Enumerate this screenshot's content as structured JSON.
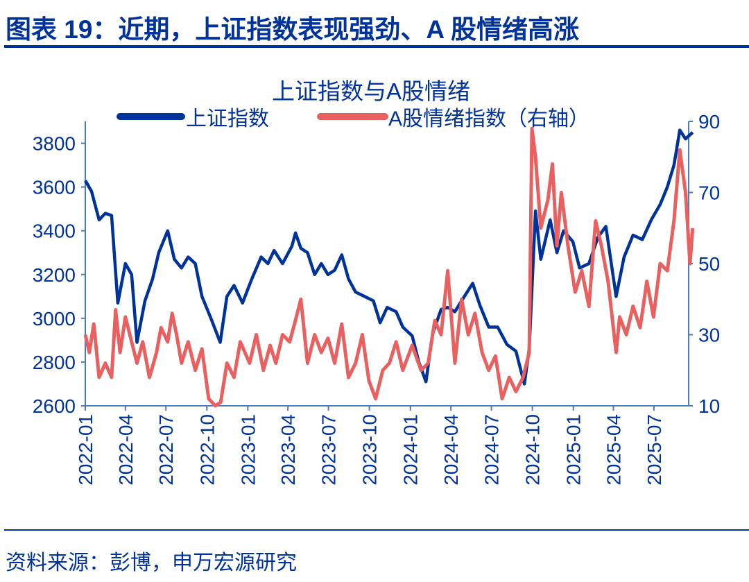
{
  "figure_title": "图表 19：近期，上证指数表现强劲、A 股情绪高涨",
  "source": "资料来源：彭博，申万宏源研究",
  "colors": {
    "primary": "#003399",
    "sentiment": "#e8605f",
    "axis": "#4a7ebb"
  },
  "chart_data": {
    "type": "line",
    "title": "上证指数与A股情绪",
    "legend_position": "top",
    "grid": false,
    "x_ticks": [
      "2022-01",
      "2022-04",
      "2022-07",
      "2022-10",
      "2023-01",
      "2023-04",
      "2023-07",
      "2023-10",
      "2024-01",
      "2024-04",
      "2024-07",
      "2024-10",
      "2025-01",
      "2025-04",
      "2025-07"
    ],
    "xlim": [
      "2022-01-01",
      "2025-09-26"
    ],
    "left_axis": {
      "ylim": [
        2600,
        3900
      ],
      "ticks": [
        "2600",
        "2800",
        "3000",
        "3200",
        "3400",
        "3600",
        "3800"
      ]
    },
    "right_axis": {
      "ylim": [
        10,
        90
      ],
      "ticks": [
        "10",
        "30",
        "50",
        "70",
        "90"
      ]
    },
    "series": [
      {
        "name": "上证指数",
        "axis": "left",
        "color": "#003399",
        "points": [
          [
            "2022-01-01",
            3630
          ],
          [
            "2022-01-15",
            3580
          ],
          [
            "2022-02-01",
            3450
          ],
          [
            "2022-02-15",
            3480
          ],
          [
            "2022-03-01",
            3470
          ],
          [
            "2022-03-15",
            3070
          ],
          [
            "2022-04-01",
            3250
          ],
          [
            "2022-04-15",
            3200
          ],
          [
            "2022-04-27",
            2890
          ],
          [
            "2022-05-15",
            3080
          ],
          [
            "2022-06-01",
            3180
          ],
          [
            "2022-06-15",
            3300
          ],
          [
            "2022-07-05",
            3400
          ],
          [
            "2022-07-20",
            3270
          ],
          [
            "2022-08-05",
            3230
          ],
          [
            "2022-08-20",
            3280
          ],
          [
            "2022-09-05",
            3250
          ],
          [
            "2022-09-20",
            3100
          ],
          [
            "2022-10-10",
            3000
          ],
          [
            "2022-10-31",
            2890
          ],
          [
            "2022-11-15",
            3100
          ],
          [
            "2022-12-01",
            3150
          ],
          [
            "2022-12-20",
            3070
          ],
          [
            "2023-01-10",
            3180
          ],
          [
            "2023-01-31",
            3280
          ],
          [
            "2023-02-15",
            3250
          ],
          [
            "2023-03-01",
            3310
          ],
          [
            "2023-03-20",
            3250
          ],
          [
            "2023-04-10",
            3330
          ],
          [
            "2023-04-18",
            3390
          ],
          [
            "2023-04-30",
            3320
          ],
          [
            "2023-05-15",
            3300
          ],
          [
            "2023-05-31",
            3200
          ],
          [
            "2023-06-15",
            3250
          ],
          [
            "2023-06-30",
            3200
          ],
          [
            "2023-07-15",
            3220
          ],
          [
            "2023-07-31",
            3290
          ],
          [
            "2023-08-15",
            3180
          ],
          [
            "2023-08-31",
            3120
          ],
          [
            "2023-09-20",
            3100
          ],
          [
            "2023-10-10",
            3080
          ],
          [
            "2023-10-25",
            2980
          ],
          [
            "2023-11-10",
            3050
          ],
          [
            "2023-11-30",
            3030
          ],
          [
            "2023-12-15",
            2960
          ],
          [
            "2024-01-05",
            2920
          ],
          [
            "2024-01-20",
            2800
          ],
          [
            "2024-02-05",
            2710
          ],
          [
            "2024-02-20",
            2930
          ],
          [
            "2024-03-10",
            3040
          ],
          [
            "2024-03-25",
            3050
          ],
          [
            "2024-04-10",
            3030
          ],
          [
            "2024-04-25",
            3080
          ],
          [
            "2024-05-20",
            3160
          ],
          [
            "2024-06-05",
            3060
          ],
          [
            "2024-06-25",
            2960
          ],
          [
            "2024-07-15",
            2960
          ],
          [
            "2024-08-05",
            2880
          ],
          [
            "2024-08-25",
            2850
          ],
          [
            "2024-09-13",
            2700
          ],
          [
            "2024-09-24",
            2860
          ],
          [
            "2024-10-08",
            3490
          ],
          [
            "2024-10-20",
            3270
          ],
          [
            "2024-11-10",
            3450
          ],
          [
            "2024-11-25",
            3300
          ],
          [
            "2024-12-10",
            3400
          ],
          [
            "2024-12-31",
            3350
          ],
          [
            "2025-01-15",
            3230
          ],
          [
            "2025-02-05",
            3250
          ],
          [
            "2025-02-25",
            3370
          ],
          [
            "2025-03-15",
            3420
          ],
          [
            "2025-04-07",
            3100
          ],
          [
            "2025-04-25",
            3280
          ],
          [
            "2025-05-15",
            3380
          ],
          [
            "2025-06-05",
            3360
          ],
          [
            "2025-06-25",
            3450
          ],
          [
            "2025-07-15",
            3520
          ],
          [
            "2025-07-31",
            3600
          ],
          [
            "2025-08-15",
            3700
          ],
          [
            "2025-08-28",
            3860
          ],
          [
            "2025-09-10",
            3820
          ],
          [
            "2025-09-26",
            3850
          ]
        ]
      },
      {
        "name": "A股情绪指数（右轴）",
        "axis": "right",
        "color": "#e8605f",
        "points": [
          [
            "2022-01-01",
            30
          ],
          [
            "2022-01-10",
            25
          ],
          [
            "2022-01-20",
            33
          ],
          [
            "2022-02-01",
            18
          ],
          [
            "2022-02-15",
            22
          ],
          [
            "2022-03-01",
            18
          ],
          [
            "2022-03-10",
            37
          ],
          [
            "2022-03-20",
            25
          ],
          [
            "2022-04-01",
            35
          ],
          [
            "2022-04-15",
            28
          ],
          [
            "2022-04-27",
            22
          ],
          [
            "2022-05-10",
            28
          ],
          [
            "2022-05-25",
            18
          ],
          [
            "2022-06-10",
            25
          ],
          [
            "2022-06-20",
            32
          ],
          [
            "2022-07-05",
            28
          ],
          [
            "2022-07-15",
            36
          ],
          [
            "2022-07-25",
            30
          ],
          [
            "2022-08-05",
            22
          ],
          [
            "2022-08-20",
            28
          ],
          [
            "2022-09-05",
            20
          ],
          [
            "2022-09-20",
            26
          ],
          [
            "2022-10-05",
            12
          ],
          [
            "2022-10-20",
            10
          ],
          [
            "2022-11-01",
            11
          ],
          [
            "2022-11-15",
            22
          ],
          [
            "2022-12-01",
            18
          ],
          [
            "2022-12-15",
            28
          ],
          [
            "2023-01-05",
            22
          ],
          [
            "2023-01-20",
            30
          ],
          [
            "2023-02-05",
            20
          ],
          [
            "2023-02-20",
            27
          ],
          [
            "2023-03-05",
            22
          ],
          [
            "2023-03-20",
            30
          ],
          [
            "2023-04-05",
            28
          ],
          [
            "2023-04-20",
            35
          ],
          [
            "2023-04-30",
            40
          ],
          [
            "2023-05-15",
            22
          ],
          [
            "2023-05-31",
            30
          ],
          [
            "2023-06-15",
            25
          ],
          [
            "2023-06-30",
            29
          ],
          [
            "2023-07-15",
            22
          ],
          [
            "2023-07-31",
            33
          ],
          [
            "2023-08-15",
            18
          ],
          [
            "2023-08-31",
            22
          ],
          [
            "2023-09-15",
            30
          ],
          [
            "2023-09-30",
            17
          ],
          [
            "2023-10-15",
            12
          ],
          [
            "2023-10-31",
            20
          ],
          [
            "2023-11-15",
            22
          ],
          [
            "2023-11-30",
            28
          ],
          [
            "2023-12-15",
            20
          ],
          [
            "2024-01-05",
            27
          ],
          [
            "2024-01-25",
            20
          ],
          [
            "2024-02-10",
            22
          ],
          [
            "2024-02-25",
            34
          ],
          [
            "2024-03-10",
            30
          ],
          [
            "2024-03-25",
            48
          ],
          [
            "2024-04-10",
            22
          ],
          [
            "2024-04-25",
            40
          ],
          [
            "2024-05-10",
            30
          ],
          [
            "2024-05-25",
            36
          ],
          [
            "2024-06-10",
            25
          ],
          [
            "2024-06-25",
            20
          ],
          [
            "2024-07-10",
            24
          ],
          [
            "2024-07-25",
            12
          ],
          [
            "2024-08-10",
            18
          ],
          [
            "2024-08-25",
            14
          ],
          [
            "2024-09-10",
            18
          ],
          [
            "2024-09-24",
            25
          ],
          [
            "2024-09-30",
            88
          ],
          [
            "2024-10-08",
            80
          ],
          [
            "2024-10-20",
            60
          ],
          [
            "2024-11-05",
            68
          ],
          [
            "2024-11-15",
            78
          ],
          [
            "2024-11-25",
            55
          ],
          [
            "2024-12-05",
            70
          ],
          [
            "2024-12-20",
            55
          ],
          [
            "2025-01-05",
            42
          ],
          [
            "2025-01-20",
            48
          ],
          [
            "2025-02-05",
            38
          ],
          [
            "2025-02-20",
            62
          ],
          [
            "2025-03-05",
            55
          ],
          [
            "2025-03-20",
            45
          ],
          [
            "2025-04-07",
            25
          ],
          [
            "2025-04-15",
            35
          ],
          [
            "2025-04-30",
            30
          ],
          [
            "2025-05-15",
            38
          ],
          [
            "2025-05-31",
            32
          ],
          [
            "2025-06-15",
            45
          ],
          [
            "2025-06-30",
            35
          ],
          [
            "2025-07-15",
            50
          ],
          [
            "2025-07-31",
            48
          ],
          [
            "2025-08-15",
            62
          ],
          [
            "2025-08-28",
            82
          ],
          [
            "2025-09-10",
            70
          ],
          [
            "2025-09-20",
            50
          ],
          [
            "2025-09-26",
            60
          ]
        ]
      }
    ]
  }
}
